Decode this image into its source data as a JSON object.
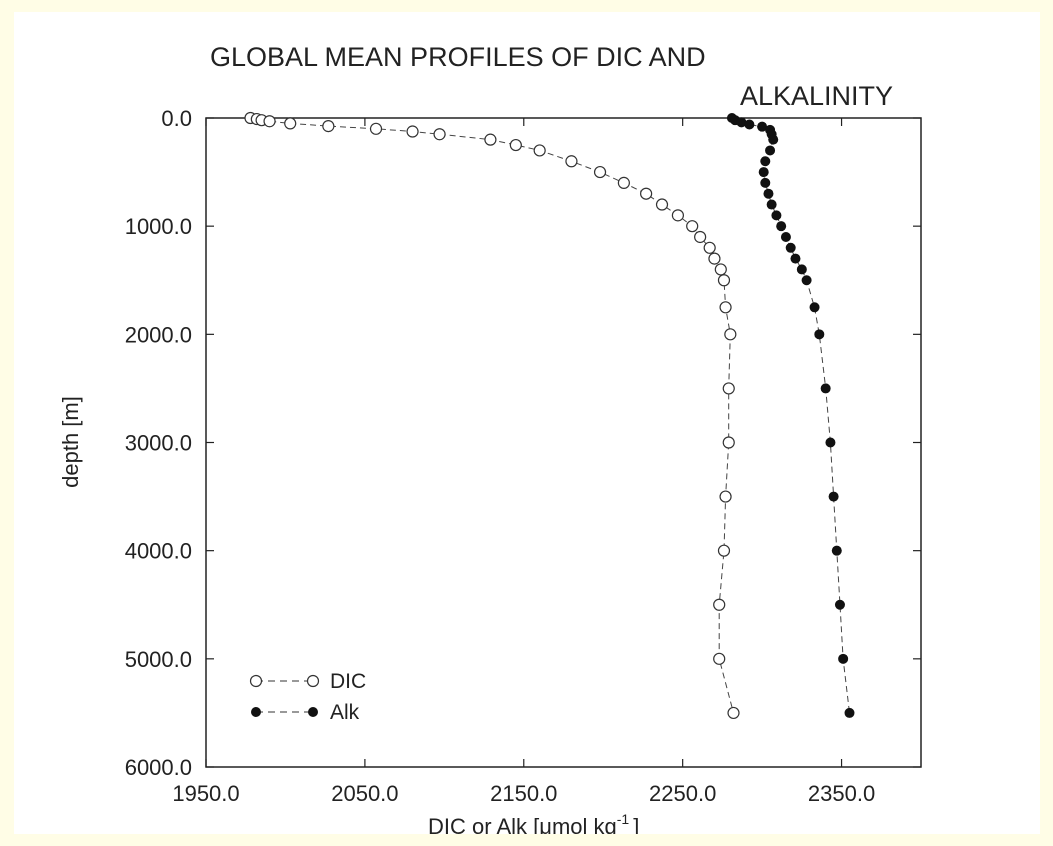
{
  "chart_data": {
    "type": "scatter",
    "title_line1": "GLOBAL MEAN PROFILES OF DIC AND",
    "title_line2": "ALKALINITY",
    "xlabel_main": "DIC or Alk [",
    "xlabel_mu": "μ",
    "xlabel_unit": "mol kg",
    "xlabel_exp": "-1",
    "xlabel_close": "]",
    "ylabel": "depth [m]",
    "xlim": [
      1950,
      2400
    ],
    "ylim": [
      0,
      6000
    ],
    "y_inverted": true,
    "grid": false,
    "legend_position": "bottom-left",
    "x_ticks": [
      {
        "value": 1950,
        "label": "1950.0"
      },
      {
        "value": 2050,
        "label": "2050.0"
      },
      {
        "value": 2150,
        "label": "2150.0"
      },
      {
        "value": 2250,
        "label": "2250.0"
      },
      {
        "value": 2350,
        "label": "2350.0"
      }
    ],
    "y_ticks": [
      {
        "value": 0,
        "label": "0.0"
      },
      {
        "value": 1000,
        "label": "1000.0"
      },
      {
        "value": 2000,
        "label": "2000.0"
      },
      {
        "value": 3000,
        "label": "3000.0"
      },
      {
        "value": 4000,
        "label": "4000.0"
      },
      {
        "value": 5000,
        "label": "5000.0"
      },
      {
        "value": 6000,
        "label": "6000.0"
      }
    ],
    "series": [
      {
        "name": "DIC",
        "marker": "open-circle",
        "color": "#222222",
        "points": [
          [
            1978,
            0
          ],
          [
            1982,
            10
          ],
          [
            1985,
            20
          ],
          [
            1990,
            30
          ],
          [
            2003,
            50
          ],
          [
            2027,
            75
          ],
          [
            2057,
            100
          ],
          [
            2080,
            125
          ],
          [
            2097,
            150
          ],
          [
            2129,
            200
          ],
          [
            2145,
            250
          ],
          [
            2160,
            300
          ],
          [
            2180,
            400
          ],
          [
            2198,
            500
          ],
          [
            2213,
            600
          ],
          [
            2227,
            700
          ],
          [
            2237,
            800
          ],
          [
            2247,
            900
          ],
          [
            2256,
            1000
          ],
          [
            2261,
            1100
          ],
          [
            2267,
            1200
          ],
          [
            2270,
            1300
          ],
          [
            2274,
            1400
          ],
          [
            2276,
            1500
          ],
          [
            2277,
            1750
          ],
          [
            2280,
            2000
          ],
          [
            2279,
            2500
          ],
          [
            2279,
            3000
          ],
          [
            2277,
            3500
          ],
          [
            2276,
            4000
          ],
          [
            2273,
            4500
          ],
          [
            2273,
            5000
          ],
          [
            2282,
            5500
          ]
        ]
      },
      {
        "name": "Alk",
        "marker": "filled-circle",
        "color": "#111111",
        "points": [
          [
            2281,
            0
          ],
          [
            2283,
            20
          ],
          [
            2287,
            40
          ],
          [
            2292,
            60
          ],
          [
            2300,
            80
          ],
          [
            2305,
            110
          ],
          [
            2306,
            150
          ],
          [
            2307,
            200
          ],
          [
            2305,
            300
          ],
          [
            2302,
            400
          ],
          [
            2301,
            500
          ],
          [
            2302,
            600
          ],
          [
            2304,
            700
          ],
          [
            2306,
            800
          ],
          [
            2309,
            900
          ],
          [
            2312,
            1000
          ],
          [
            2315,
            1100
          ],
          [
            2318,
            1200
          ],
          [
            2321,
            1300
          ],
          [
            2325,
            1400
          ],
          [
            2328,
            1500
          ],
          [
            2333,
            1750
          ],
          [
            2336,
            2000
          ],
          [
            2340,
            2500
          ],
          [
            2343,
            3000
          ],
          [
            2345,
            3500
          ],
          [
            2347,
            4000
          ],
          [
            2349,
            4500
          ],
          [
            2351,
            5000
          ],
          [
            2355,
            5500
          ]
        ]
      }
    ]
  }
}
